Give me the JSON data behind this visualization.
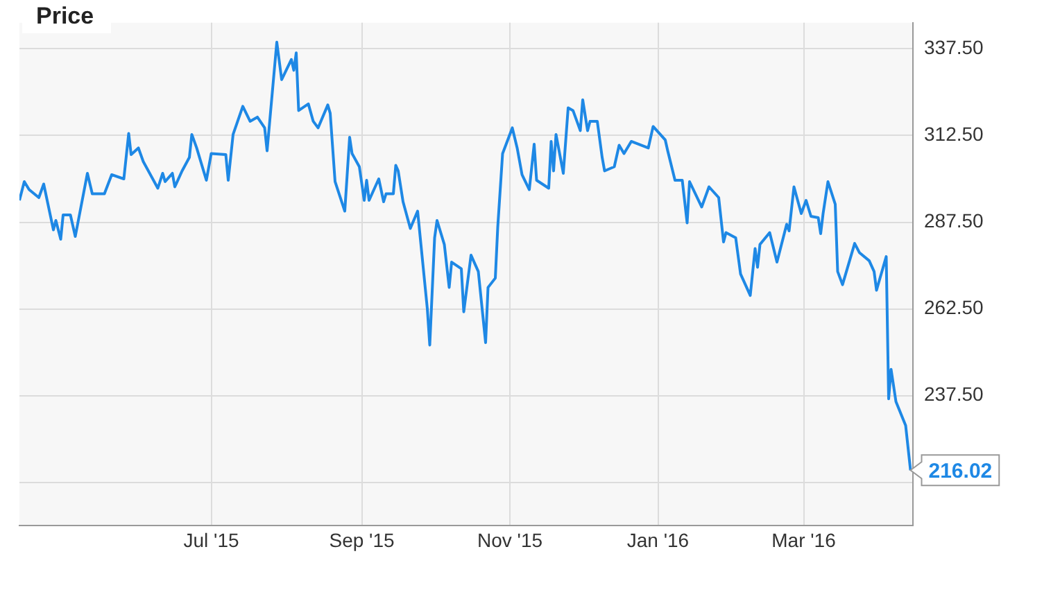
{
  "chart_data": {
    "type": "line",
    "title": "Price",
    "x": [
      "2015-04-13",
      "2015-04-15",
      "2015-04-17",
      "2015-04-21",
      "2015-04-23",
      "2015-04-27",
      "2015-04-28",
      "2015-04-30",
      "2015-05-01",
      "2015-05-04",
      "2015-05-06",
      "2015-05-11",
      "2015-05-13",
      "2015-05-18",
      "2015-05-21",
      "2015-05-26",
      "2015-05-28",
      "2015-05-29",
      "2015-06-01",
      "2015-06-03",
      "2015-06-09",
      "2015-06-11",
      "2015-06-12",
      "2015-06-15",
      "2015-06-16",
      "2015-06-19",
      "2015-06-22",
      "2015-06-23",
      "2015-06-25",
      "2015-06-29",
      "2015-07-01",
      "2015-07-07",
      "2015-07-08",
      "2015-07-10",
      "2015-07-14",
      "2015-07-17",
      "2015-07-20",
      "2015-07-23",
      "2015-07-24",
      "2015-07-28",
      "2015-07-30",
      "2015-08-03",
      "2015-08-04",
      "2015-08-05",
      "2015-08-06",
      "2015-08-10",
      "2015-08-12",
      "2015-08-14",
      "2015-08-18",
      "2015-08-19",
      "2015-08-21",
      "2015-08-25",
      "2015-08-27",
      "2015-08-28",
      "2015-08-31",
      "2015-09-02",
      "2015-09-03",
      "2015-09-04",
      "2015-09-08",
      "2015-09-10",
      "2015-09-11",
      "2015-09-14",
      "2015-09-15",
      "2015-09-16",
      "2015-09-18",
      "2015-09-21",
      "2015-09-24",
      "2015-09-28",
      "2015-09-29",
      "2015-10-01",
      "2015-10-02",
      "2015-10-05",
      "2015-10-07",
      "2015-10-08",
      "2015-10-12",
      "2015-10-13",
      "2015-10-16",
      "2015-10-19",
      "2015-10-22",
      "2015-10-23",
      "2015-10-26",
      "2015-10-27",
      "2015-10-29",
      "2015-11-02",
      "2015-11-04",
      "2015-11-06",
      "2015-11-09",
      "2015-11-11",
      "2015-11-12",
      "2015-11-17",
      "2015-11-18",
      "2015-11-19",
      "2015-11-20",
      "2015-11-23",
      "2015-11-25",
      "2015-11-27",
      "2015-11-30",
      "2015-12-01",
      "2015-12-03",
      "2015-12-04",
      "2015-12-07",
      "2015-12-09",
      "2015-12-10",
      "2015-12-14",
      "2015-12-16",
      "2015-12-18",
      "2015-12-21",
      "2015-12-28",
      "2015-12-30",
      "2016-01-04",
      "2016-01-05",
      "2016-01-08",
      "2016-01-11",
      "2016-01-13",
      "2016-01-14",
      "2016-01-19",
      "2016-01-22",
      "2016-01-26",
      "2016-01-28",
      "2016-01-29",
      "2016-02-02",
      "2016-02-04",
      "2016-02-08",
      "2016-02-10",
      "2016-02-11",
      "2016-02-12",
      "2016-02-16",
      "2016-02-19",
      "2016-02-23",
      "2016-02-24",
      "2016-02-26",
      "2016-02-29",
      "2016-03-02",
      "2016-03-04",
      "2016-03-07",
      "2016-03-08",
      "2016-03-09",
      "2016-03-11",
      "2016-03-14",
      "2016-03-15",
      "2016-03-17",
      "2016-03-22",
      "2016-03-24",
      "2016-03-28",
      "2016-03-30",
      "2016-03-31",
      "2016-04-04",
      "2016-04-05",
      "2016-04-06",
      "2016-04-08",
      "2016-04-12",
      "2016-04-14"
    ],
    "series": [
      {
        "color": "#1e88e5",
        "values": [
          293.8,
          299.2,
          296.9,
          294.6,
          298.5,
          285.3,
          288.0,
          282.6,
          289.6,
          289.6,
          283.4,
          301.6,
          295.7,
          295.7,
          301.2,
          300.0,
          313.1,
          307.0,
          308.9,
          305.0,
          297.3,
          301.6,
          299.2,
          301.6,
          297.7,
          302.3,
          306.2,
          312.8,
          308.9,
          299.6,
          307.3,
          307.0,
          299.6,
          312.8,
          320.9,
          316.6,
          317.8,
          314.7,
          308.1,
          339.4,
          328.6,
          334.4,
          331.3,
          336.3,
          319.7,
          321.6,
          316.6,
          314.7,
          321.3,
          318.9,
          299.2,
          290.7,
          312.0,
          307.3,
          303.5,
          293.8,
          299.6,
          293.8,
          300.0,
          293.4,
          295.7,
          295.7,
          303.9,
          302.3,
          293.4,
          285.7,
          290.7,
          262.5,
          252.1,
          283.0,
          288.0,
          281.1,
          268.7,
          276.0,
          274.1,
          261.7,
          278.0,
          273.3,
          252.8,
          268.7,
          271.4,
          286.1,
          307.3,
          314.7,
          308.9,
          301.2,
          296.9,
          310.0,
          299.6,
          297.3,
          310.8,
          302.3,
          312.8,
          301.6,
          320.5,
          319.7,
          313.9,
          322.8,
          313.9,
          316.6,
          316.6,
          306.2,
          302.3,
          303.5,
          309.7,
          307.3,
          310.8,
          308.9,
          315.1,
          311.2,
          308.1,
          299.6,
          299.6,
          287.3,
          299.2,
          291.9,
          297.7,
          294.6,
          281.8,
          284.5,
          283.0,
          272.6,
          266.4,
          279.9,
          274.5,
          281.1,
          284.5,
          276.0,
          286.9,
          285.0,
          297.7,
          290.0,
          293.8,
          289.2,
          288.8,
          284.2,
          290.0,
          299.2,
          292.7,
          273.3,
          269.5,
          281.4,
          278.7,
          276.4,
          273.3,
          267.9,
          277.6,
          236.6,
          245.1,
          235.8,
          228.9,
          216.02
        ],
        "value_labels": [
          null,
          null,
          null,
          null,
          null,
          null,
          null,
          null,
          null,
          null,
          null,
          null,
          null,
          null,
          null,
          null,
          null,
          null,
          null,
          null,
          null,
          null,
          null,
          null,
          null,
          null,
          null,
          null,
          null,
          null,
          null,
          null,
          null,
          null,
          null,
          null,
          null,
          null,
          null,
          null,
          null,
          null,
          null,
          null,
          null,
          null,
          null,
          null,
          null,
          null,
          null,
          null,
          null,
          null,
          null,
          null,
          null,
          null,
          null,
          null,
          null,
          null,
          null,
          null,
          null,
          null,
          null,
          null,
          null,
          null,
          null,
          null,
          null,
          null,
          null,
          null,
          null,
          null,
          null,
          null,
          null,
          null,
          null,
          null,
          null,
          null,
          null,
          null,
          null,
          null,
          null,
          null,
          null,
          null,
          null,
          null,
          null,
          null,
          null,
          null,
          null,
          null,
          null,
          null,
          null,
          null,
          null,
          null,
          null,
          null,
          null,
          null,
          null,
          null,
          null,
          null,
          null,
          null,
          null,
          null,
          null,
          null,
          null,
          null,
          null,
          null,
          null,
          null,
          null,
          null,
          null,
          null,
          null,
          null,
          null,
          null,
          null,
          null,
          null,
          null,
          null,
          null,
          null,
          null,
          null,
          null,
          null,
          null,
          null,
          null,
          null,
          "216.02"
        ]
      }
    ],
    "xlim": [
      "2015-04-13",
      "2016-04-15"
    ],
    "xticks": [
      {
        "value": "2015-07-01",
        "label": "Jul '15"
      },
      {
        "value": "2015-09-01",
        "label": "Sep '15"
      },
      {
        "value": "2015-11-01",
        "label": "Nov '15"
      },
      {
        "value": "2016-01-01",
        "label": "Jan '16"
      },
      {
        "value": "2016-03-01",
        "label": "Mar '16"
      }
    ],
    "ylim": [
      200,
      345
    ],
    "yticks": [
      {
        "value": 212.5,
        "label": null
      },
      {
        "value": 237.5,
        "label": "237.50"
      },
      {
        "value": 262.5,
        "label": "262.50"
      },
      {
        "value": 287.5,
        "label": "287.50"
      },
      {
        "value": 312.5,
        "label": "312.50"
      },
      {
        "value": 337.5,
        "label": "337.50"
      }
    ],
    "grid": true,
    "legend": false,
    "marker": "none",
    "line_style": "solid"
  }
}
